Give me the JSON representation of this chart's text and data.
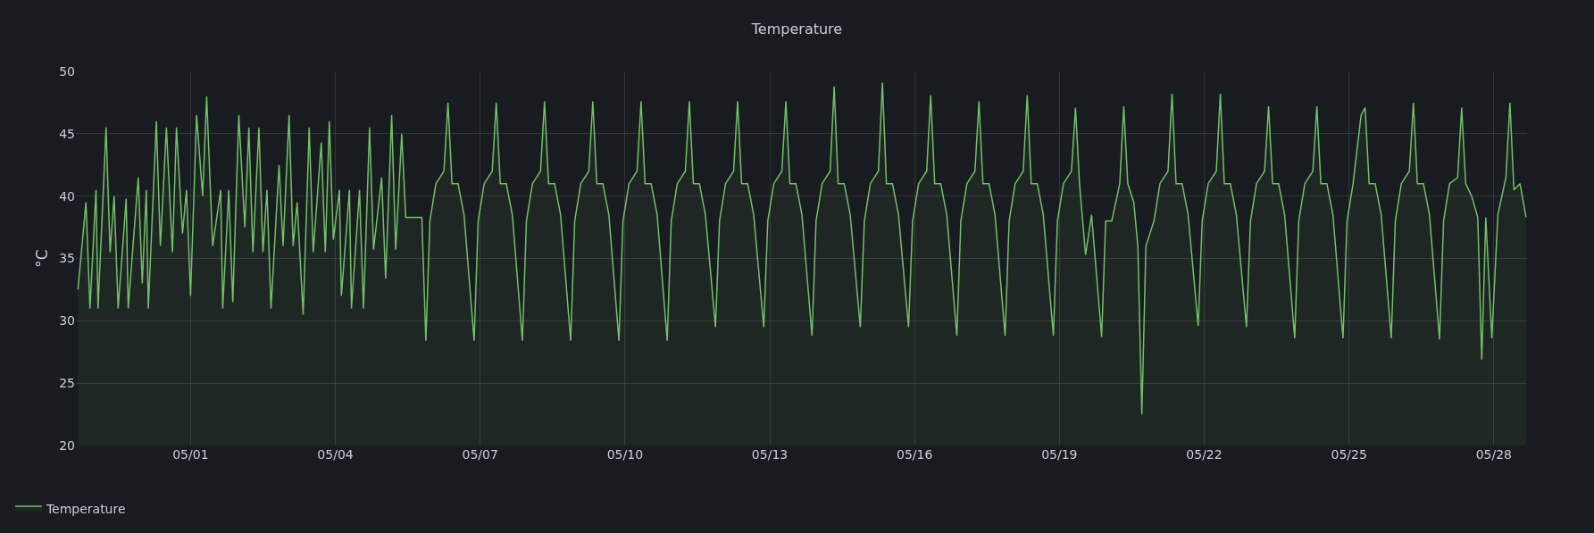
{
  "chart_data": {
    "type": "area",
    "title": "Temperature",
    "ylabel": "°C",
    "xlim": [
      "--04-28T15:00",
      "--05-28T16:30"
    ],
    "xticks": [
      {
        "value": "--05-01",
        "label": "05/01"
      },
      {
        "value": "--05-04",
        "label": "05/04"
      },
      {
        "value": "--05-07",
        "label": "05/07"
      },
      {
        "value": "--05-10",
        "label": "05/10"
      },
      {
        "value": "--05-13",
        "label": "05/13"
      },
      {
        "value": "--05-16",
        "label": "05/16"
      },
      {
        "value": "--05-19",
        "label": "05/19"
      },
      {
        "value": "--05-22",
        "label": "05/22"
      },
      {
        "value": "--05-25",
        "label": "05/25"
      },
      {
        "value": "--05-28",
        "label": "05/28"
      }
    ],
    "ylim": [
      20,
      50
    ],
    "yticks": [
      20,
      25,
      30,
      35,
      40,
      45,
      50
    ],
    "grid": true,
    "legend": "bottom left",
    "x": [
      "--04-28T16:00",
      "--04-28T20:00",
      "--04-28T22:00",
      "--04-29T01:00",
      "--04-29T02:00",
      "--04-29T06:00",
      "--04-29T08:00",
      "--04-29T10:00",
      "--04-29T12:00",
      "--04-29T16:00",
      "--04-29T17:00",
      "--04-29T22:00",
      "--04-30T00:00",
      "--04-30T02:00",
      "--04-30T03:00",
      "--04-30T07:00",
      "--04-30T09:00",
      "--04-30T12:00",
      "--04-30T15:00",
      "--04-30T17:00",
      "--04-30T20:00",
      "--04-30T22:00",
      "--05-01T00:00",
      "--05-01T03:00",
      "--05-01T06:00",
      "--05-01T08:00",
      "--05-01T11:00",
      "--05-01T15:00",
      "--05-01T16:00",
      "--05-01T19:00",
      "--05-01T21:00",
      "--05-02T00:00",
      "--05-02T03:00",
      "--05-02T05:00",
      "--05-02T07:00",
      "--05-02T10:00",
      "--05-02T12:00",
      "--05-02T14:00",
      "--05-02T16:00",
      "--05-02T20:00",
      "--05-02T22:00",
      "--05-03T01:00",
      "--05-03T03:00",
      "--05-03T05:00",
      "--05-03T08:00",
      "--05-03T11:00",
      "--05-03T13:00",
      "--05-03T17:00",
      "--05-03T19:00",
      "--05-03T21:00",
      "--05-03T23:00",
      "--05-04T02:00",
      "--05-04T03:00",
      "--05-04T07:00",
      "--05-04T08:00",
      "--05-04T12:00",
      "--05-04T14:00",
      "--05-04T17:00",
      "--05-04T19:00",
      "--05-04T23:00",
      "--05-05T01:00",
      "--05-05T04:00",
      "--05-05T06:00",
      "--05-05T09:00",
      "--05-05T11:00",
      "--05-05T19:00",
      "--05-05T21:00",
      "--05-05T23:00",
      "--05-06T02:00",
      "--05-06T06:00",
      "--05-06T08:00",
      "--05-06T10:00",
      "--05-06T13:00",
      "--05-06T16:00",
      "--05-06T21:00",
      "--05-06T23:00",
      "--05-07T02:00",
      "--05-07T06:00",
      "--05-07T08:00",
      "--05-07T10:00",
      "--05-07T13:00",
      "--05-07T16:00",
      "--05-07T21:00",
      "--05-07T23:00",
      "--05-08T02:00",
      "--05-08T06:00",
      "--05-08T08:00",
      "--05-08T10:00",
      "--05-08T13:00",
      "--05-08T16:00",
      "--05-08T21:00",
      "--05-08T23:00",
      "--05-09T02:00",
      "--05-09T06:00",
      "--05-09T08:00",
      "--05-09T10:00",
      "--05-09T13:00",
      "--05-09T16:00",
      "--05-09T21:00",
      "--05-09T23:00",
      "--05-10T02:00",
      "--05-10T06:00",
      "--05-10T08:00",
      "--05-10T10:00",
      "--05-10T13:00",
      "--05-10T16:00",
      "--05-10T21:00",
      "--05-10T23:00",
      "--05-11T02:00",
      "--05-11T06:00",
      "--05-11T08:00",
      "--05-11T10:00",
      "--05-11T13:00",
      "--05-11T16:00",
      "--05-11T21:00",
      "--05-11T23:00",
      "--05-12T02:00",
      "--05-12T06:00",
      "--05-12T08:00",
      "--05-12T10:00",
      "--05-12T13:00",
      "--05-12T16:00",
      "--05-12T21:00",
      "--05-12T23:00",
      "--05-13T02:00",
      "--05-13T06:00",
      "--05-13T08:00",
      "--05-13T10:00",
      "--05-13T13:00",
      "--05-13T16:00",
      "--05-13T21:00",
      "--05-13T23:00",
      "--05-14T02:00",
      "--05-14T06:00",
      "--05-14T08:00",
      "--05-14T10:00",
      "--05-14T13:00",
      "--05-14T16:00",
      "--05-14T21:00",
      "--05-14T23:00",
      "--05-15T02:00",
      "--05-15T06:00",
      "--05-15T08:00",
      "--05-15T10:00",
      "--05-15T13:00",
      "--05-15T16:00",
      "--05-15T21:00",
      "--05-15T23:00",
      "--05-16T02:00",
      "--05-16T06:00",
      "--05-16T08:00",
      "--05-16T10:00",
      "--05-16T13:00",
      "--05-16T16:00",
      "--05-16T21:00",
      "--05-16T23:00",
      "--05-17T02:00",
      "--05-17T06:00",
      "--05-17T08:00",
      "--05-17T10:00",
      "--05-17T13:00",
      "--05-17T16:00",
      "--05-17T21:00",
      "--05-17T23:00",
      "--05-18T02:00",
      "--05-18T06:00",
      "--05-18T08:00",
      "--05-18T10:00",
      "--05-18T13:00",
      "--05-18T16:00",
      "--05-18T21:00",
      "--05-18T23:00",
      "--05-19T02:00",
      "--05-19T06:00",
      "--05-19T08:00",
      "--05-19T10:00",
      "--05-19T13:00",
      "--05-19T16:00",
      "--05-19T21:00",
      "--05-19T23:00",
      "--05-20T02:00",
      "--05-20T06:00",
      "--05-20T08:00",
      "--05-20T10:00",
      "--05-20T13:00",
      "--05-20T15:00",
      "--05-20T17:00",
      "--05-20T19:00",
      "--05-20T23:00",
      "--05-21T02:00",
      "--05-21T06:00",
      "--05-21T08:00",
      "--05-21T10:00",
      "--05-21T13:00",
      "--05-21T16:00",
      "--05-21T21:00",
      "--05-21T23:00",
      "--05-22T02:00",
      "--05-22T06:00",
      "--05-22T08:00",
      "--05-22T10:00",
      "--05-22T13:00",
      "--05-22T16:00",
      "--05-22T21:00",
      "--05-22T23:00",
      "--05-23T02:00",
      "--05-23T06:00",
      "--05-23T08:00",
      "--05-23T10:00",
      "--05-23T13:00",
      "--05-23T16:00",
      "--05-23T21:00",
      "--05-23T23:00",
      "--05-24T02:00",
      "--05-24T06:00",
      "--05-24T08:00",
      "--05-24T10:00",
      "--05-24T13:00",
      "--05-24T16:00",
      "--05-24T21:00",
      "--05-24T23:00",
      "--05-25T02:00",
      "--05-25T06:00",
      "--05-25T08:00",
      "--05-25T10:00",
      "--05-25T13:00",
      "--05-25T16:00",
      "--05-25T21:00",
      "--05-25T23:00",
      "--05-26T02:00",
      "--05-26T06:00",
      "--05-26T08:00",
      "--05-26T10:00",
      "--05-26T13:00",
      "--05-26T16:00",
      "--05-26T21:00",
      "--05-26T23:00",
      "--05-27T02:00",
      "--05-27T06:00",
      "--05-27T08:00",
      "--05-27T10:00",
      "--05-27T13:00",
      "--05-27T16:00",
      "--05-27T18:00",
      "--05-27T20:00",
      "--05-27T23:00",
      "--05-28T02:00",
      "--05-28T06:00",
      "--05-28T08:00",
      "--05-28T10:00",
      "--05-28T13:00",
      "--05-28T16:00"
    ],
    "series": [
      {
        "name": "Temperature",
        "color": "#73bf69",
        "values": [
          32.5,
          39.5,
          31,
          40.5,
          31,
          45.5,
          35.5,
          40,
          31,
          39.8,
          31,
          41.5,
          33,
          40.5,
          31,
          46,
          36,
          45.5,
          35.5,
          45.5,
          37,
          40.5,
          32,
          46.5,
          40,
          48,
          36,
          40.5,
          31,
          40.5,
          31.5,
          46.5,
          37.5,
          45.5,
          35.5,
          45.5,
          35.5,
          40.5,
          31,
          42.5,
          36,
          46.5,
          36,
          39.5,
          30.5,
          45.5,
          35.5,
          44.3,
          35.5,
          46,
          36.5,
          40.5,
          32,
          40.5,
          31,
          40.5,
          31,
          45.5,
          35.7,
          41.5,
          33.4,
          46.5,
          35.7,
          45,
          38.3,
          38.3,
          28.4,
          38,
          41,
          42,
          47.5,
          41,
          41,
          38.5,
          28.4,
          38,
          41,
          42,
          47.5,
          41,
          41,
          38.5,
          28.4,
          38,
          41,
          42,
          47.6,
          41,
          41,
          38.5,
          28.4,
          38,
          41,
          42,
          47.6,
          41,
          41,
          38.5,
          28.4,
          38,
          41,
          42,
          47.6,
          41,
          41,
          38.5,
          28.4,
          38,
          41,
          42,
          47.6,
          41,
          41,
          38.5,
          29.5,
          38,
          41,
          42,
          47.6,
          41,
          41,
          38.5,
          29.5,
          38,
          41,
          42,
          47.6,
          41,
          41,
          38.5,
          28.8,
          38,
          41,
          42,
          48.8,
          41,
          41,
          38.5,
          29.5,
          38,
          41,
          42,
          49.1,
          41,
          41,
          38.5,
          29.5,
          38,
          41,
          42,
          48.1,
          41,
          41,
          38.5,
          28.8,
          38,
          41,
          42,
          47.6,
          41,
          41,
          38.5,
          28.8,
          38,
          41,
          42,
          48.1,
          41,
          41,
          38.5,
          28.8,
          38,
          41,
          42,
          47.1,
          41,
          35.3,
          38.5,
          28.7,
          38,
          38,
          41,
          47.2,
          41,
          39.5,
          36,
          22.5,
          36,
          38,
          41,
          42,
          48.2,
          41,
          41,
          38.5,
          29.6,
          38,
          41,
          42,
          48.2,
          41,
          41,
          38.5,
          29.5,
          38,
          41,
          42,
          47.2,
          41,
          41,
          38.5,
          28.6,
          38,
          41,
          42,
          47.2,
          41,
          41,
          38.5,
          28.6,
          38,
          41,
          46.5,
          47.1,
          41,
          41,
          38.5,
          28.6,
          38,
          41,
          42,
          47.5,
          41,
          41,
          38.5,
          28.5,
          38,
          41,
          41.5,
          47.1,
          41,
          40,
          38.3,
          26.9,
          38.3,
          28.6,
          38.5,
          41.5,
          47.5,
          40.5,
          41,
          38.3
        ]
      }
    ]
  }
}
